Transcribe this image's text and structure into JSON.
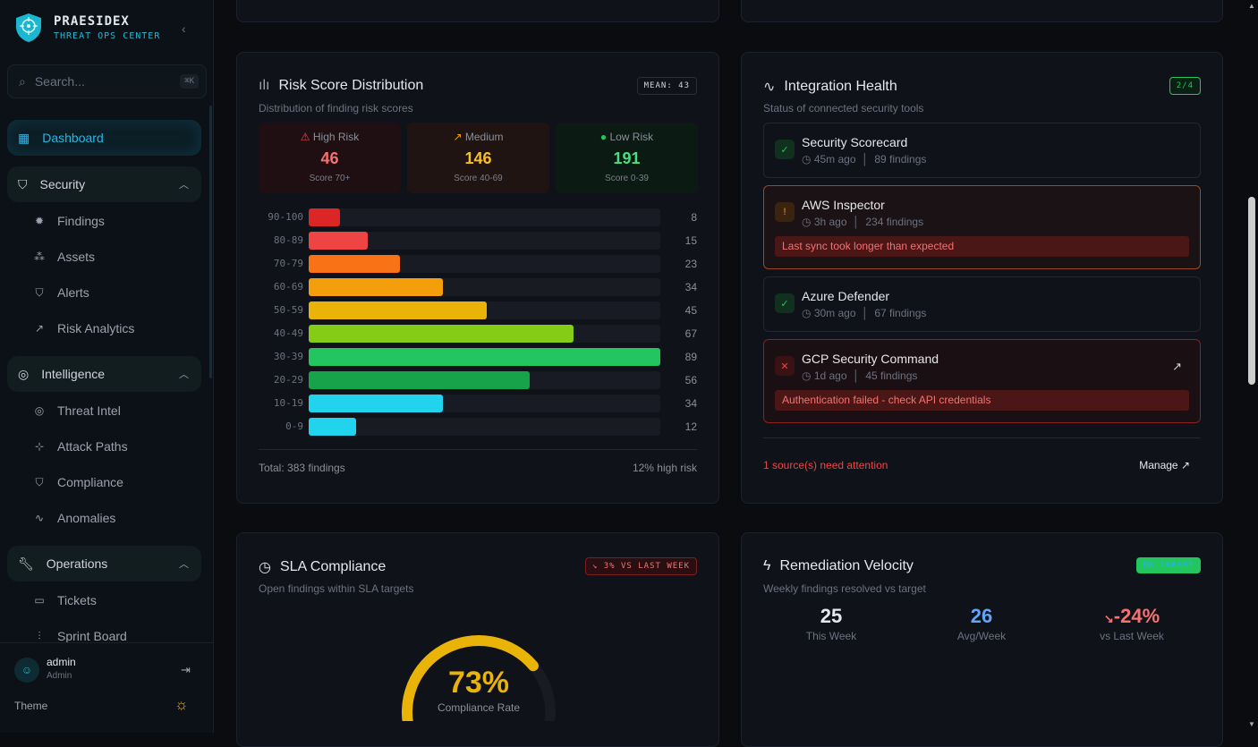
{
  "brand": {
    "name": "PRAESIDEX",
    "subtitle": "THREAT OPS CENTER"
  },
  "search": {
    "placeholder": "Search...",
    "shortcut": "⌘K"
  },
  "nav": {
    "dashboard": "Dashboard",
    "security": {
      "label": "Security",
      "items": [
        "Findings",
        "Assets",
        "Alerts",
        "Risk Analytics"
      ]
    },
    "intelligence": {
      "label": "Intelligence",
      "items": [
        "Threat Intel",
        "Attack Paths",
        "Compliance",
        "Anomalies"
      ]
    },
    "operations": {
      "label": "Operations",
      "items": [
        "Tickets",
        "Sprint Board"
      ]
    }
  },
  "user": {
    "name": "admin",
    "role": "Admin",
    "theme_label": "Theme"
  },
  "risk": {
    "title": "Risk Score Distribution",
    "subtitle": "Distribution of finding risk scores",
    "mean_badge": "MEAN: 43",
    "stats": [
      {
        "label": "High Risk",
        "value": "46",
        "range": "Score 70+",
        "color": "#f87171"
      },
      {
        "label": "Medium",
        "value": "146",
        "range": "Score 40-69",
        "color": "#fbbf24"
      },
      {
        "label": "Low Risk",
        "value": "191",
        "range": "Score 0-39",
        "color": "#4ade80"
      }
    ],
    "total": "Total: 383 findings",
    "high_pct": "12% high risk"
  },
  "chart_data": {
    "type": "bar",
    "orientation": "horizontal",
    "categories": [
      "90-100",
      "80-89",
      "70-79",
      "60-69",
      "50-59",
      "40-49",
      "30-39",
      "20-29",
      "10-19",
      "0-9"
    ],
    "values": [
      8,
      15,
      23,
      34,
      45,
      67,
      89,
      56,
      34,
      12
    ],
    "colors": [
      "#dc2626",
      "#ef4444",
      "#f97316",
      "#f59e0b",
      "#eab308",
      "#84cc16",
      "#22c55e",
      "#16a34a",
      "#22d3ee",
      "#22d3ee"
    ],
    "xlim": [
      0,
      89
    ]
  },
  "integration": {
    "title": "Integration Health",
    "subtitle": "Status of connected security tools",
    "badge": "2/4",
    "items": [
      {
        "name": "Security Scorecard",
        "time": "45m ago",
        "findings": "89 findings",
        "status": "ok"
      },
      {
        "name": "AWS Inspector",
        "time": "3h ago",
        "findings": "234 findings",
        "status": "warning",
        "message": "Last sync took longer than expected"
      },
      {
        "name": "Azure Defender",
        "time": "30m ago",
        "findings": "67 findings",
        "status": "ok"
      },
      {
        "name": "GCP Security Command",
        "time": "1d ago",
        "findings": "45 findings",
        "status": "error",
        "message": "Authentication failed - check API credentials"
      }
    ],
    "attention": "1 source(s) need attention",
    "manage": "Manage"
  },
  "sla": {
    "title": "SLA Compliance",
    "subtitle": "Open findings within SLA targets",
    "badge": "3% VS LAST WEEK",
    "value": "73%",
    "value_fraction": 0.73,
    "label": "Compliance Rate"
  },
  "velocity": {
    "title": "Remediation Velocity",
    "subtitle": "Weekly findings resolved vs target",
    "badge": "ON TARGET",
    "this_week": "25",
    "this_week_label": "This Week",
    "avg": "26",
    "avg_label": "Avg/Week",
    "change": "-24%",
    "change_label": "vs Last Week"
  }
}
